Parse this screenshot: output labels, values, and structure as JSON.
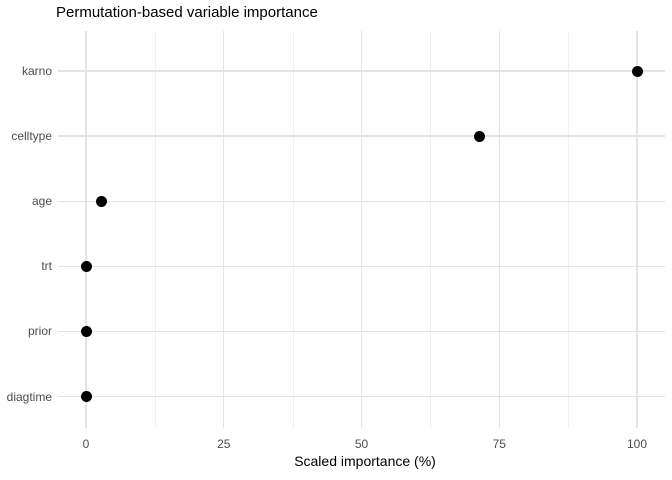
{
  "chart_data": {
    "type": "scatter",
    "subtype": "horizontal-dot-plot",
    "title": "Permutation-based variable importance",
    "xlabel": "Scaled importance (%)",
    "ylabel": "",
    "categories": [
      "karno",
      "celltype",
      "age",
      "trt",
      "prior",
      "diagtime"
    ],
    "values": [
      100,
      71.4,
      2.9,
      0,
      0.1,
      0.1
    ],
    "xlim": [
      0,
      100
    ],
    "x_major_ticks": [
      0,
      25,
      50,
      75,
      100
    ],
    "x_minor_ticks": [
      12.5,
      37.5,
      62.5,
      87.5
    ],
    "grid": true,
    "legend": false,
    "point_color": "#000000"
  },
  "colors": {
    "background": "#ffffff",
    "text": "#000000",
    "text_muted": "#4d4d4d",
    "grid_major": "#e4e4e4",
    "grid_minor": "#f0f0f0",
    "point": "#000000"
  }
}
